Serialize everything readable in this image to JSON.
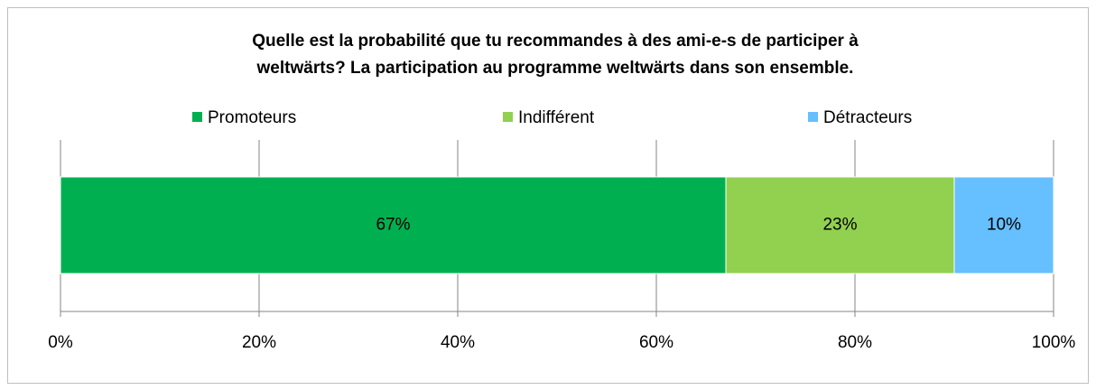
{
  "chart_data": {
    "type": "stacked-bar-horizontal",
    "title": [
      "Quelle est la probabilité que tu recommandes à des ami-e-s de participer à",
      "weltwärts? La participation au programme weltwärts dans son ensemble."
    ],
    "categories": [
      null
    ],
    "series": [
      {
        "name": "Promoteurs",
        "color": "#00b050",
        "values": [
          67
        ],
        "value_labels": [
          "67%"
        ]
      },
      {
        "name": "Indifférent",
        "color": "#92d050",
        "values": [
          23
        ],
        "value_labels": [
          "23%"
        ]
      },
      {
        "name": "Détracteurs",
        "color": "#66bfff",
        "values": [
          10
        ],
        "value_labels": [
          "10%"
        ]
      }
    ],
    "xlim": [
      0,
      100
    ],
    "xticks": [
      {
        "value": 0,
        "label": "0%"
      },
      {
        "value": 20,
        "label": "20%"
      },
      {
        "value": 40,
        "label": "40%"
      },
      {
        "value": 60,
        "label": "60%"
      },
      {
        "value": 80,
        "label": "80%"
      },
      {
        "value": 100,
        "label": "100%"
      }
    ],
    "grid": true,
    "legend": "top"
  }
}
